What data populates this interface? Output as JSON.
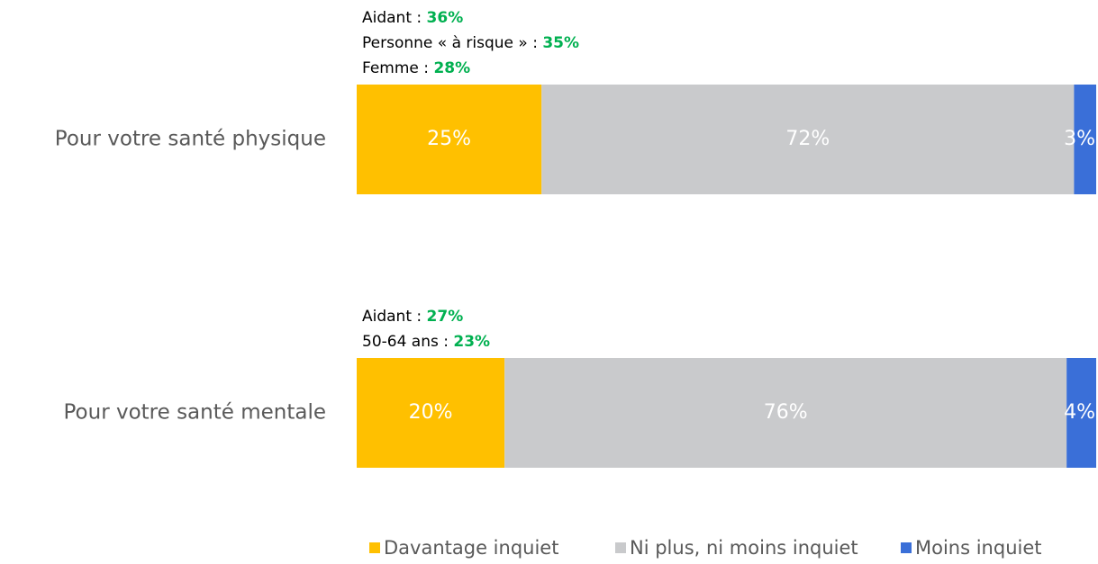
{
  "chart_data": {
    "type": "stacked-bar-horizontal",
    "categories": [
      "Pour votre santé physique",
      "Pour votre santé mentale"
    ],
    "series": [
      {
        "name": "Davantage inquiet",
        "color": "#FFC000",
        "values": [
          25,
          20
        ],
        "value_labels": [
          "25%",
          "20%"
        ]
      },
      {
        "name": "Ni plus, ni moins inquiet",
        "color": "#C9CACC",
        "values": [
          72,
          76
        ],
        "value_labels": [
          "72%",
          "76%"
        ]
      },
      {
        "name": "Moins inquiet",
        "color": "#3A6FD8",
        "values": [
          3,
          4
        ],
        "value_labels": [
          "3%",
          "4%"
        ]
      }
    ],
    "xlim": [
      0,
      100
    ],
    "annotations": [
      [
        {
          "label": "Aidant :",
          "value": "36%"
        },
        {
          "label": "Personne « à risque » :",
          "value": "35%"
        },
        {
          "label": "Femme :",
          "value": "28%"
        }
      ],
      [
        {
          "label": "Aidant :",
          "value": "27%"
        },
        {
          "label": "50-64 ans :",
          "value": "23%"
        }
      ]
    ]
  }
}
